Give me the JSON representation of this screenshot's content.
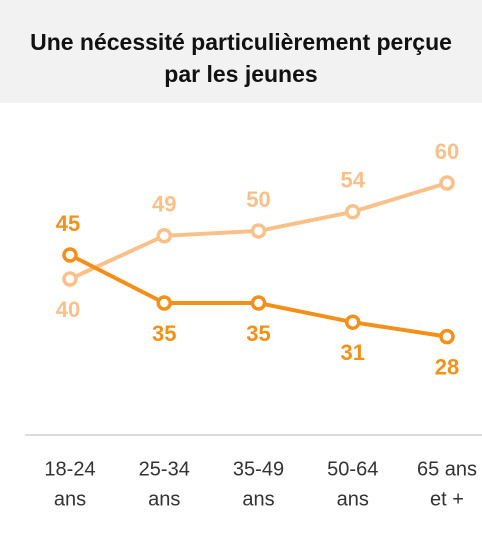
{
  "chart_data": {
    "type": "line",
    "title": "Une nécessité particulièrement perçue par les jeunes",
    "categories": [
      [
        "18-24",
        "ans"
      ],
      [
        "25-34",
        "ans"
      ],
      [
        "35-49",
        "ans"
      ],
      [
        "50-64",
        "ans"
      ],
      [
        "65 ans",
        "et +"
      ]
    ],
    "series": [
      {
        "color": "#f9c08a",
        "values": [
          40,
          49,
          50,
          54,
          60
        ]
      },
      {
        "color": "#f39019",
        "values": [
          45,
          35,
          35,
          31,
          28
        ]
      }
    ],
    "ylim": [
      20,
      70
    ]
  }
}
